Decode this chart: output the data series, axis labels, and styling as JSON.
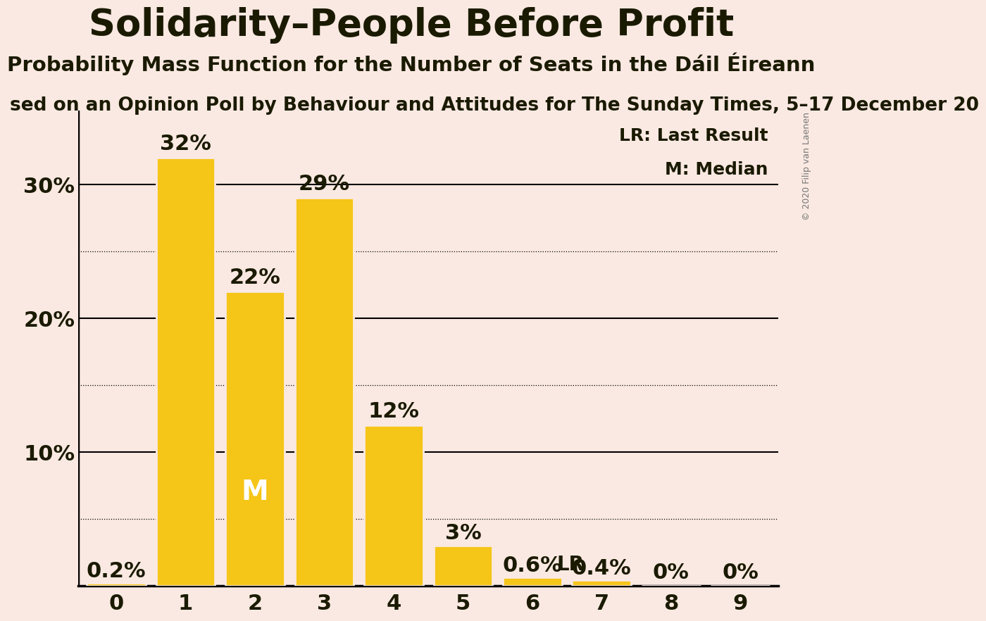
{
  "title": "Solidarity–People Before Profit",
  "subtitle": "Probability Mass Function for the Number of Seats in the Dáil Éireann",
  "source_line": "sed on an Opinion Poll by Behaviour and Attitudes for The Sunday Times, 5–17 December 20",
  "copyright": "© 2020 Filip van Laenen",
  "categories": [
    0,
    1,
    2,
    3,
    4,
    5,
    6,
    7,
    8,
    9
  ],
  "values": [
    0.2,
    32,
    22,
    29,
    12,
    3,
    0.6,
    0.4,
    0,
    0
  ],
  "bar_color": "#F5C518",
  "background_color": "#FAE9E2",
  "bar_labels": [
    "0.2%",
    "32%",
    "22%",
    "29%",
    "12%",
    "3%",
    "0.6%",
    "0.4%",
    "0%",
    "0%"
  ],
  "median_bar": 2,
  "lr_bar": 6,
  "grid_lines_dotted": [
    5,
    15,
    25
  ],
  "grid_lines_solid": [
    0,
    10,
    20,
    30
  ],
  "text_color": "#1a1a00",
  "legend_lr": "LR: Last Result",
  "legend_m": "M: Median",
  "title_fontsize": 38,
  "subtitle_fontsize": 21,
  "source_fontsize": 19,
  "tick_fontsize": 22,
  "label_fontsize_large": 22,
  "label_fontsize_small": 18
}
